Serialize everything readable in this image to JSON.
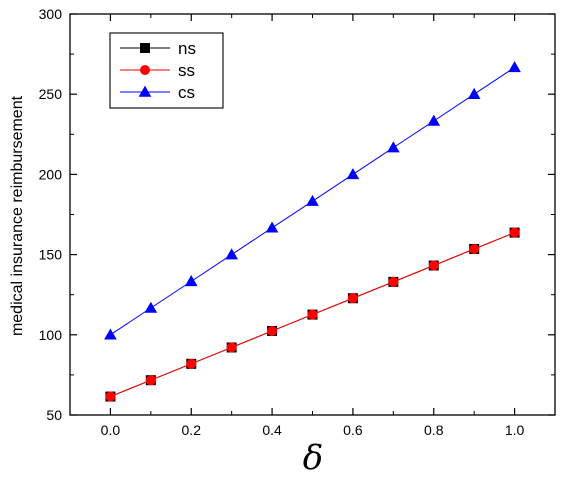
{
  "chart_data": {
    "type": "line",
    "title": "",
    "xlabel": "δ",
    "ylabel": "medical insurance reimbursement",
    "xlim": [
      -0.1,
      1.1
    ],
    "ylim": [
      50,
      300
    ],
    "xticks": [
      "0.0",
      "0.2",
      "0.4",
      "0.6",
      "0.8",
      "1.0"
    ],
    "xtick_values": [
      0.0,
      0.2,
      0.4,
      0.6,
      0.8,
      1.0
    ],
    "yticks": [
      "50",
      "100",
      "150",
      "200",
      "250",
      "300"
    ],
    "ytick_values": [
      50,
      100,
      150,
      200,
      250,
      300
    ],
    "grid": false,
    "legend_position": "top-left",
    "x": [
      0.0,
      0.1,
      0.2,
      0.3,
      0.4,
      0.5,
      0.6,
      0.7,
      0.8,
      0.9,
      1.0
    ],
    "series": [
      {
        "name": "ns",
        "color": "#000000",
        "marker": "square",
        "values": [
          61.5,
          71.7,
          81.9,
          92.1,
          102.4,
          112.6,
          122.8,
          133.0,
          143.2,
          153.5,
          163.7
        ]
      },
      {
        "name": "ss",
        "color": "#ff0000",
        "marker": "circle",
        "values": [
          61.5,
          71.7,
          81.9,
          92.1,
          102.4,
          112.6,
          122.8,
          133.0,
          143.2,
          153.5,
          163.7
        ]
      },
      {
        "name": "cs",
        "color": "#0000ff",
        "marker": "triangle",
        "values": [
          100.0,
          116.7,
          133.3,
          150.0,
          166.7,
          183.3,
          200.0,
          216.7,
          233.3,
          250.0,
          266.7
        ]
      }
    ]
  }
}
